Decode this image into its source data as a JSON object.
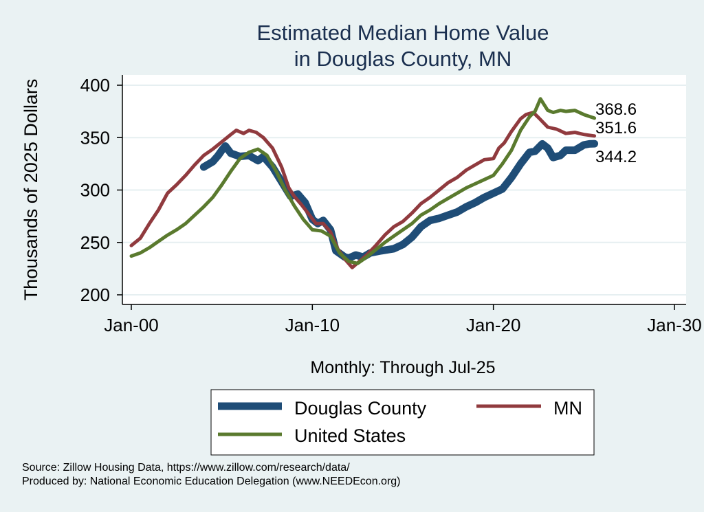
{
  "chart_data": {
    "type": "line",
    "title": [
      "Estimated Median Home Value",
      "in Douglas County, MN"
    ],
    "xlabel": "Monthly: Through Jul-25",
    "ylabel": "Thousands of 2025 Dollars",
    "xlim": [
      2000,
      2030
    ],
    "ylim": [
      200,
      400
    ],
    "x_ticks": [
      {
        "value": 2000,
        "label": "Jan-00"
      },
      {
        "value": 2010,
        "label": "Jan-10"
      },
      {
        "value": 2020,
        "label": "Jan-20"
      },
      {
        "value": 2030,
        "label": "Jan-30"
      }
    ],
    "y_ticks": [
      {
        "value": 200,
        "label": "200"
      },
      {
        "value": 250,
        "label": "250"
      },
      {
        "value": 300,
        "label": "300"
      },
      {
        "value": 350,
        "label": "350"
      },
      {
        "value": 400,
        "label": "400"
      }
    ],
    "grid": true,
    "series": [
      {
        "name": "Douglas County",
        "color": "#1f4d77",
        "end_label": "344.2",
        "points": [
          [
            2004.0,
            322
          ],
          [
            2004.5,
            327
          ],
          [
            2004.8,
            333
          ],
          [
            2005.0,
            338
          ],
          [
            2005.2,
            342
          ],
          [
            2005.5,
            335
          ],
          [
            2006.0,
            332
          ],
          [
            2006.5,
            333
          ],
          [
            2007.0,
            328
          ],
          [
            2007.3,
            332
          ],
          [
            2007.8,
            322
          ],
          [
            2008.3,
            308
          ],
          [
            2008.8,
            294
          ],
          [
            2009.2,
            296
          ],
          [
            2009.6,
            288
          ],
          [
            2010.0,
            272
          ],
          [
            2010.3,
            268
          ],
          [
            2010.6,
            271
          ],
          [
            2011.0,
            262
          ],
          [
            2011.3,
            242
          ],
          [
            2011.8,
            236
          ],
          [
            2012.0,
            235
          ],
          [
            2012.4,
            238
          ],
          [
            2012.8,
            236
          ],
          [
            2013.2,
            240
          ],
          [
            2013.8,
            242
          ],
          [
            2014.5,
            244
          ],
          [
            2015.0,
            248
          ],
          [
            2015.5,
            255
          ],
          [
            2016.0,
            265
          ],
          [
            2016.5,
            271
          ],
          [
            2017.0,
            273
          ],
          [
            2017.5,
            276
          ],
          [
            2018.0,
            279
          ],
          [
            2018.5,
            284
          ],
          [
            2019.0,
            288
          ],
          [
            2019.5,
            293
          ],
          [
            2020.0,
            297
          ],
          [
            2020.5,
            301
          ],
          [
            2021.0,
            312
          ],
          [
            2021.5,
            325
          ],
          [
            2022.0,
            336
          ],
          [
            2022.3,
            337
          ],
          [
            2022.7,
            344
          ],
          [
            2023.0,
            340
          ],
          [
            2023.3,
            331
          ],
          [
            2023.7,
            333
          ],
          [
            2024.0,
            338
          ],
          [
            2024.5,
            338
          ],
          [
            2025.0,
            343
          ],
          [
            2025.3,
            344
          ],
          [
            2025.58,
            344.2
          ]
        ]
      },
      {
        "name": "MN",
        "color": "#903a3e",
        "end_label": "351.6",
        "points": [
          [
            2000.0,
            247
          ],
          [
            2000.5,
            254
          ],
          [
            2001.0,
            268
          ],
          [
            2001.5,
            281
          ],
          [
            2002.0,
            297
          ],
          [
            2002.5,
            305
          ],
          [
            2003.0,
            314
          ],
          [
            2003.5,
            324
          ],
          [
            2004.0,
            333
          ],
          [
            2004.5,
            339
          ],
          [
            2005.0,
            346
          ],
          [
            2005.5,
            353
          ],
          [
            2005.8,
            357
          ],
          [
            2006.2,
            354
          ],
          [
            2006.5,
            357
          ],
          [
            2006.9,
            355
          ],
          [
            2007.3,
            350
          ],
          [
            2007.8,
            340
          ],
          [
            2008.3,
            322
          ],
          [
            2008.7,
            302
          ],
          [
            2009.0,
            294
          ],
          [
            2009.4,
            286
          ],
          [
            2009.8,
            277
          ],
          [
            2010.2,
            268
          ],
          [
            2010.6,
            268
          ],
          [
            2011.0,
            260
          ],
          [
            2011.4,
            244
          ],
          [
            2011.8,
            234
          ],
          [
            2012.2,
            226
          ],
          [
            2012.6,
            232
          ],
          [
            2013.0,
            238
          ],
          [
            2013.5,
            247
          ],
          [
            2014.0,
            257
          ],
          [
            2014.5,
            265
          ],
          [
            2015.0,
            270
          ],
          [
            2015.5,
            278
          ],
          [
            2016.0,
            287
          ],
          [
            2016.5,
            293
          ],
          [
            2017.0,
            300
          ],
          [
            2017.5,
            307
          ],
          [
            2018.0,
            312
          ],
          [
            2018.5,
            319
          ],
          [
            2019.0,
            324
          ],
          [
            2019.5,
            329
          ],
          [
            2020.0,
            330
          ],
          [
            2020.3,
            340
          ],
          [
            2020.6,
            345
          ],
          [
            2021.0,
            356
          ],
          [
            2021.5,
            368
          ],
          [
            2021.8,
            372
          ],
          [
            2022.2,
            374
          ],
          [
            2022.5,
            369
          ],
          [
            2023.0,
            360
          ],
          [
            2023.5,
            358
          ],
          [
            2024.0,
            354
          ],
          [
            2024.5,
            355
          ],
          [
            2025.0,
            353
          ],
          [
            2025.58,
            351.6
          ]
        ]
      },
      {
        "name": "United States",
        "color": "#5a7a2e",
        "end_label": "368.6",
        "points": [
          [
            2000.0,
            237
          ],
          [
            2000.5,
            240
          ],
          [
            2001.0,
            245
          ],
          [
            2001.5,
            251
          ],
          [
            2002.0,
            257
          ],
          [
            2002.5,
            262
          ],
          [
            2003.0,
            268
          ],
          [
            2003.5,
            276
          ],
          [
            2004.0,
            284
          ],
          [
            2004.5,
            293
          ],
          [
            2005.0,
            305
          ],
          [
            2005.5,
            318
          ],
          [
            2006.0,
            330
          ],
          [
            2006.5,
            336
          ],
          [
            2007.0,
            339
          ],
          [
            2007.5,
            333
          ],
          [
            2008.0,
            318
          ],
          [
            2008.5,
            300
          ],
          [
            2009.0,
            285
          ],
          [
            2009.5,
            272
          ],
          [
            2010.0,
            262
          ],
          [
            2010.5,
            261
          ],
          [
            2011.0,
            256
          ],
          [
            2011.5,
            240
          ],
          [
            2012.0,
            232
          ],
          [
            2012.5,
            230
          ],
          [
            2013.0,
            236
          ],
          [
            2013.5,
            243
          ],
          [
            2014.0,
            250
          ],
          [
            2014.5,
            256
          ],
          [
            2015.0,
            262
          ],
          [
            2015.5,
            268
          ],
          [
            2016.0,
            276
          ],
          [
            2016.5,
            281
          ],
          [
            2017.0,
            287
          ],
          [
            2017.5,
            292
          ],
          [
            2018.0,
            297
          ],
          [
            2018.5,
            302
          ],
          [
            2019.0,
            306
          ],
          [
            2019.5,
            310
          ],
          [
            2020.0,
            314
          ],
          [
            2020.5,
            325
          ],
          [
            2021.0,
            338
          ],
          [
            2021.5,
            357
          ],
          [
            2022.0,
            370
          ],
          [
            2022.3,
            375
          ],
          [
            2022.6,
            387
          ],
          [
            2023.0,
            376
          ],
          [
            2023.3,
            374
          ],
          [
            2023.7,
            376
          ],
          [
            2024.0,
            375
          ],
          [
            2024.5,
            376
          ],
          [
            2025.0,
            372
          ],
          [
            2025.58,
            368.6
          ]
        ]
      }
    ],
    "legend_position": "bottom"
  },
  "footer": {
    "source": "Source: Zillow Housing Data, https://www.zillow.com/research/data/",
    "produced_by": "Produced by: National Economic Education Delegation (www.NEEDEcon.org)"
  }
}
